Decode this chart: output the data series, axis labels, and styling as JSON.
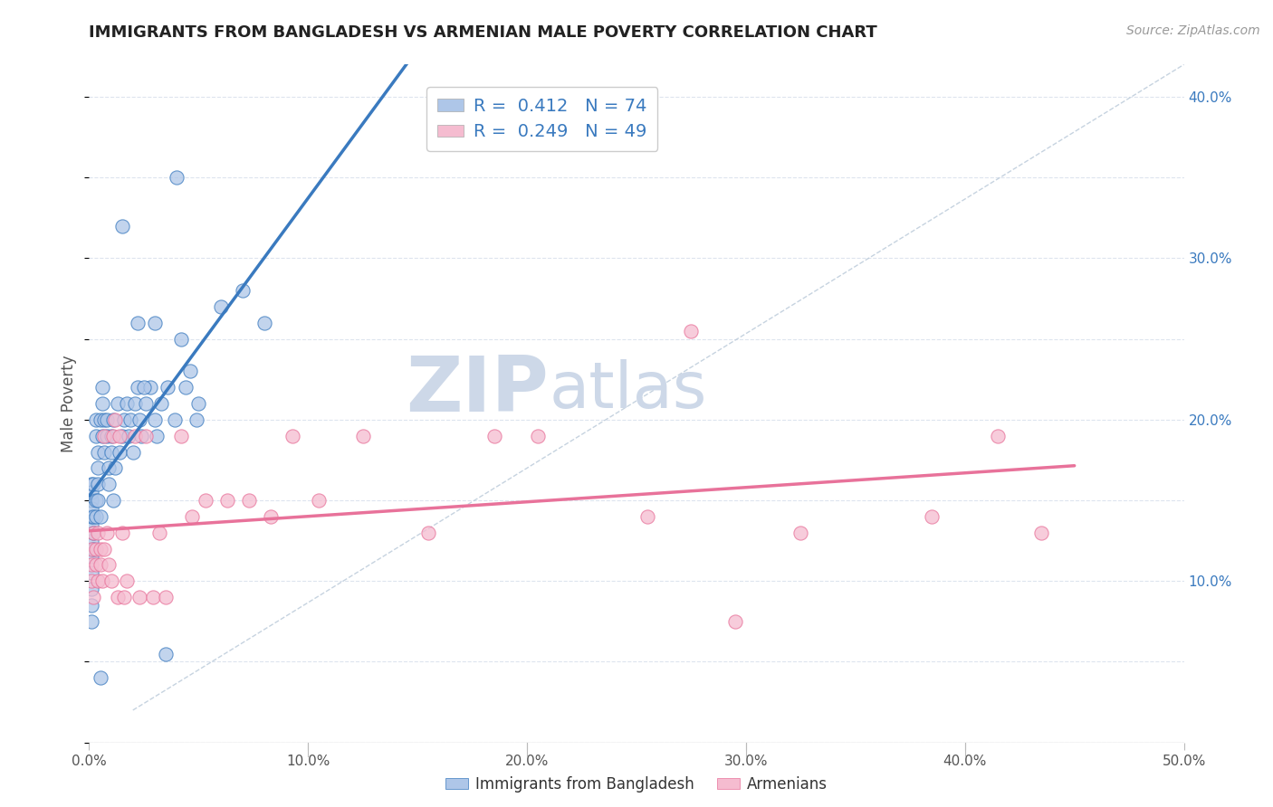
{
  "title": "IMMIGRANTS FROM BANGLADESH VS ARMENIAN MALE POVERTY CORRELATION CHART",
  "source": "Source: ZipAtlas.com",
  "ylabel_label": "Male Poverty",
  "xlim": [
    0.0,
    0.5
  ],
  "ylim": [
    0.0,
    0.42
  ],
  "xticks": [
    0.0,
    0.1,
    0.2,
    0.3,
    0.4,
    0.5
  ],
  "xtick_labels": [
    "0.0%",
    "10.0%",
    "20.0%",
    "30.0%",
    "40.0%",
    "50.0%"
  ],
  "yticks": [
    0.0,
    0.1,
    0.2,
    0.3,
    0.4
  ],
  "ytick_labels": [
    "",
    "10.0%",
    "20.0%",
    "30.0%",
    "40.0%"
  ],
  "R_bangladesh": 0.412,
  "N_bangladesh": 74,
  "R_armenian": 0.249,
  "N_armenian": 49,
  "color_bangladesh": "#aec6e8",
  "color_armenian": "#f5bcd0",
  "line_color_bangladesh": "#3a7abf",
  "line_color_armenian": "#e8729a",
  "legend_label_1": "Immigrants from Bangladesh",
  "legend_label_2": "Armenians",
  "scatter_bangladesh": [
    [
      0.001,
      0.135
    ],
    [
      0.001,
      0.14
    ],
    [
      0.001,
      0.15
    ],
    [
      0.001,
      0.16
    ],
    [
      0.001,
      0.125
    ],
    [
      0.001,
      0.115
    ],
    [
      0.001,
      0.105
    ],
    [
      0.001,
      0.095
    ],
    [
      0.001,
      0.085
    ],
    [
      0.001,
      0.075
    ],
    [
      0.001,
      0.145
    ],
    [
      0.001,
      0.155
    ],
    [
      0.002,
      0.14
    ],
    [
      0.002,
      0.13
    ],
    [
      0.002,
      0.12
    ],
    [
      0.002,
      0.16
    ],
    [
      0.003,
      0.15
    ],
    [
      0.003,
      0.14
    ],
    [
      0.003,
      0.2
    ],
    [
      0.003,
      0.19
    ],
    [
      0.004,
      0.18
    ],
    [
      0.004,
      0.17
    ],
    [
      0.004,
      0.16
    ],
    [
      0.004,
      0.15
    ],
    [
      0.005,
      0.14
    ],
    [
      0.005,
      0.2
    ],
    [
      0.006,
      0.19
    ],
    [
      0.006,
      0.21
    ],
    [
      0.006,
      0.22
    ],
    [
      0.007,
      0.2
    ],
    [
      0.007,
      0.18
    ],
    [
      0.008,
      0.19
    ],
    [
      0.008,
      0.2
    ],
    [
      0.009,
      0.17
    ],
    [
      0.009,
      0.16
    ],
    [
      0.01,
      0.18
    ],
    [
      0.01,
      0.19
    ],
    [
      0.011,
      0.15
    ],
    [
      0.011,
      0.2
    ],
    [
      0.012,
      0.17
    ],
    [
      0.013,
      0.21
    ],
    [
      0.014,
      0.18
    ],
    [
      0.015,
      0.19
    ],
    [
      0.016,
      0.2
    ],
    [
      0.017,
      0.21
    ],
    [
      0.018,
      0.19
    ],
    [
      0.019,
      0.2
    ],
    [
      0.02,
      0.18
    ],
    [
      0.021,
      0.21
    ],
    [
      0.022,
      0.22
    ],
    [
      0.023,
      0.2
    ],
    [
      0.024,
      0.19
    ],
    [
      0.026,
      0.21
    ],
    [
      0.028,
      0.22
    ],
    [
      0.03,
      0.2
    ],
    [
      0.031,
      0.19
    ],
    [
      0.033,
      0.21
    ],
    [
      0.036,
      0.22
    ],
    [
      0.039,
      0.2
    ],
    [
      0.042,
      0.25
    ],
    [
      0.044,
      0.22
    ],
    [
      0.046,
      0.23
    ],
    [
      0.049,
      0.2
    ],
    [
      0.022,
      0.26
    ],
    [
      0.03,
      0.26
    ],
    [
      0.05,
      0.21
    ],
    [
      0.04,
      0.35
    ],
    [
      0.06,
      0.27
    ],
    [
      0.07,
      0.28
    ],
    [
      0.08,
      0.26
    ],
    [
      0.015,
      0.32
    ],
    [
      0.025,
      0.22
    ],
    [
      0.005,
      0.04
    ],
    [
      0.035,
      0.055
    ]
  ],
  "scatter_armenian": [
    [
      0.001,
      0.1
    ],
    [
      0.001,
      0.11
    ],
    [
      0.001,
      0.12
    ],
    [
      0.002,
      0.13
    ],
    [
      0.002,
      0.09
    ],
    [
      0.003,
      0.11
    ],
    [
      0.003,
      0.12
    ],
    [
      0.004,
      0.1
    ],
    [
      0.004,
      0.13
    ],
    [
      0.005,
      0.12
    ],
    [
      0.005,
      0.11
    ],
    [
      0.006,
      0.1
    ],
    [
      0.007,
      0.12
    ],
    [
      0.007,
      0.19
    ],
    [
      0.008,
      0.13
    ],
    [
      0.009,
      0.11
    ],
    [
      0.01,
      0.1
    ],
    [
      0.011,
      0.19
    ],
    [
      0.012,
      0.2
    ],
    [
      0.013,
      0.09
    ],
    [
      0.014,
      0.19
    ],
    [
      0.015,
      0.13
    ],
    [
      0.016,
      0.09
    ],
    [
      0.017,
      0.1
    ],
    [
      0.021,
      0.19
    ],
    [
      0.023,
      0.09
    ],
    [
      0.026,
      0.19
    ],
    [
      0.029,
      0.09
    ],
    [
      0.032,
      0.13
    ],
    [
      0.035,
      0.09
    ],
    [
      0.042,
      0.19
    ],
    [
      0.047,
      0.14
    ],
    [
      0.053,
      0.15
    ],
    [
      0.063,
      0.15
    ],
    [
      0.073,
      0.15
    ],
    [
      0.083,
      0.14
    ],
    [
      0.093,
      0.19
    ],
    [
      0.105,
      0.15
    ],
    [
      0.125,
      0.19
    ],
    [
      0.155,
      0.13
    ],
    [
      0.185,
      0.19
    ],
    [
      0.205,
      0.19
    ],
    [
      0.255,
      0.14
    ],
    [
      0.275,
      0.255
    ],
    [
      0.295,
      0.075
    ],
    [
      0.325,
      0.13
    ],
    [
      0.385,
      0.14
    ],
    [
      0.415,
      0.19
    ],
    [
      0.435,
      0.13
    ]
  ]
}
